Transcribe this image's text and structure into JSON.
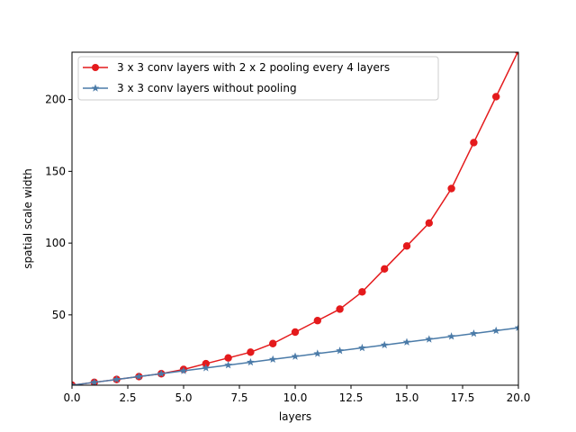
{
  "chart_data": {
    "type": "line",
    "title": "",
    "xlabel": "layers",
    "ylabel": "spatial scale width",
    "xlim": [
      0,
      20
    ],
    "ylim": [
      1,
      233
    ],
    "grid": false,
    "legend_position": "upper-left",
    "x": [
      0,
      1,
      2,
      3,
      4,
      5,
      6,
      7,
      8,
      9,
      10,
      11,
      12,
      13,
      14,
      15,
      16,
      17,
      18,
      19,
      20
    ],
    "x_ticks": [
      0,
      2.5,
      5,
      7.5,
      10,
      12.5,
      15,
      17.5,
      20
    ],
    "x_tick_labels": [
      "0.0",
      "2.5",
      "5.0",
      "7.5",
      "10.0",
      "12.5",
      "15.0",
      "17.5",
      "20.0"
    ],
    "y_ticks": [
      50,
      100,
      150,
      200
    ],
    "y_tick_labels": [
      "50",
      "100",
      "150",
      "200"
    ],
    "series": [
      {
        "name": "3 x 3 conv layers with 2 x 2 pooling every 4 layers",
        "color": "#e41a1c",
        "marker": "circle",
        "values": [
          1,
          3,
          5,
          7,
          9,
          12,
          16,
          20,
          24,
          30,
          38,
          46,
          54,
          66,
          82,
          98,
          114,
          138,
          170,
          202,
          234
        ]
      },
      {
        "name": "3 x 3 conv layers without pooling",
        "color": "#4b7ba8",
        "marker": "star",
        "values": [
          1,
          3,
          5,
          7,
          9,
          11,
          13,
          15,
          17,
          19,
          21,
          23,
          25,
          27,
          29,
          31,
          33,
          35,
          37,
          39,
          41
        ]
      }
    ]
  }
}
